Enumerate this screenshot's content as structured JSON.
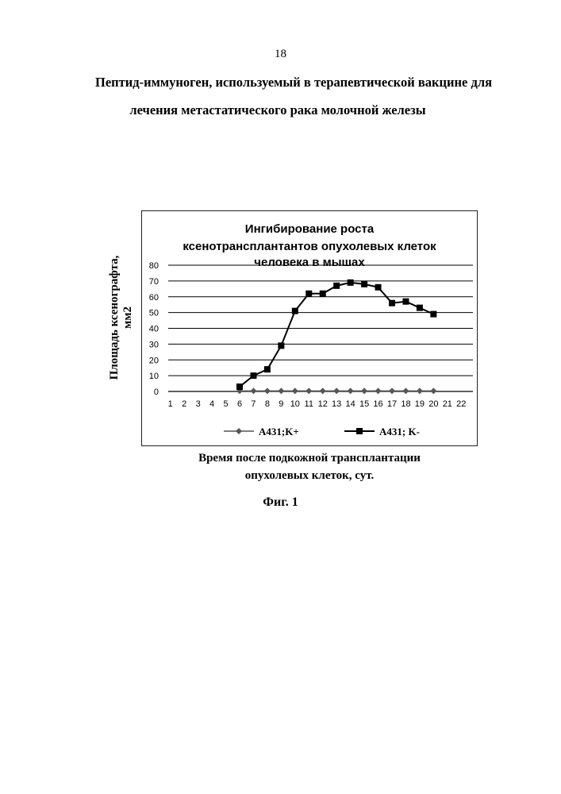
{
  "page": {
    "number": "18",
    "title_line1": "Пептид-иммуноген, используемый в терапевтической вакцине для",
    "title_line2": "лечения метастатического рака молочной железы",
    "figure_label": "Фиг. 1"
  },
  "chart_data": {
    "type": "line",
    "title_lines": [
      "Ингибирование роста",
      "ксенотрансплантантов опухолевых клеток",
      "человека в мышах"
    ],
    "ylabel_lines": [
      "Площадь ксенографта,",
      "мм2"
    ],
    "xlabel_lines": [
      "Время после подкожной трансплантации",
      "опухолевых клеток, сут."
    ],
    "categories": [
      "1",
      "2",
      "3",
      "4",
      "5",
      "6",
      "7",
      "8",
      "9",
      "10",
      "11",
      "12",
      "13",
      "14",
      "15",
      "16",
      "17",
      "18",
      "19",
      "20",
      "21",
      "22"
    ],
    "ylim": [
      0,
      80
    ],
    "yticks": [
      0,
      10,
      20,
      30,
      40,
      50,
      60,
      70,
      80
    ],
    "grid": true,
    "legend_position": "bottom",
    "series": [
      {
        "name": "A431;K+",
        "marker": "diamond",
        "color": "#555555",
        "x": [
          6,
          7,
          8,
          9,
          10,
          11,
          12,
          13,
          14,
          15,
          16,
          17,
          18,
          19,
          20
        ],
        "values": [
          0.3,
          0.3,
          0.3,
          0.3,
          0.3,
          0.3,
          0.3,
          0.3,
          0.3,
          0.3,
          0.3,
          0.3,
          0.3,
          0.3,
          0.3
        ]
      },
      {
        "name": "A431; K-",
        "marker": "square",
        "color": "#000000",
        "x": [
          6,
          7,
          8,
          9,
          10,
          11,
          12,
          13,
          14,
          15,
          16,
          17,
          18,
          19,
          20
        ],
        "values": [
          3,
          10,
          14,
          29,
          51,
          62,
          62,
          67,
          69,
          68,
          66,
          56,
          57,
          53,
          49
        ]
      }
    ]
  }
}
